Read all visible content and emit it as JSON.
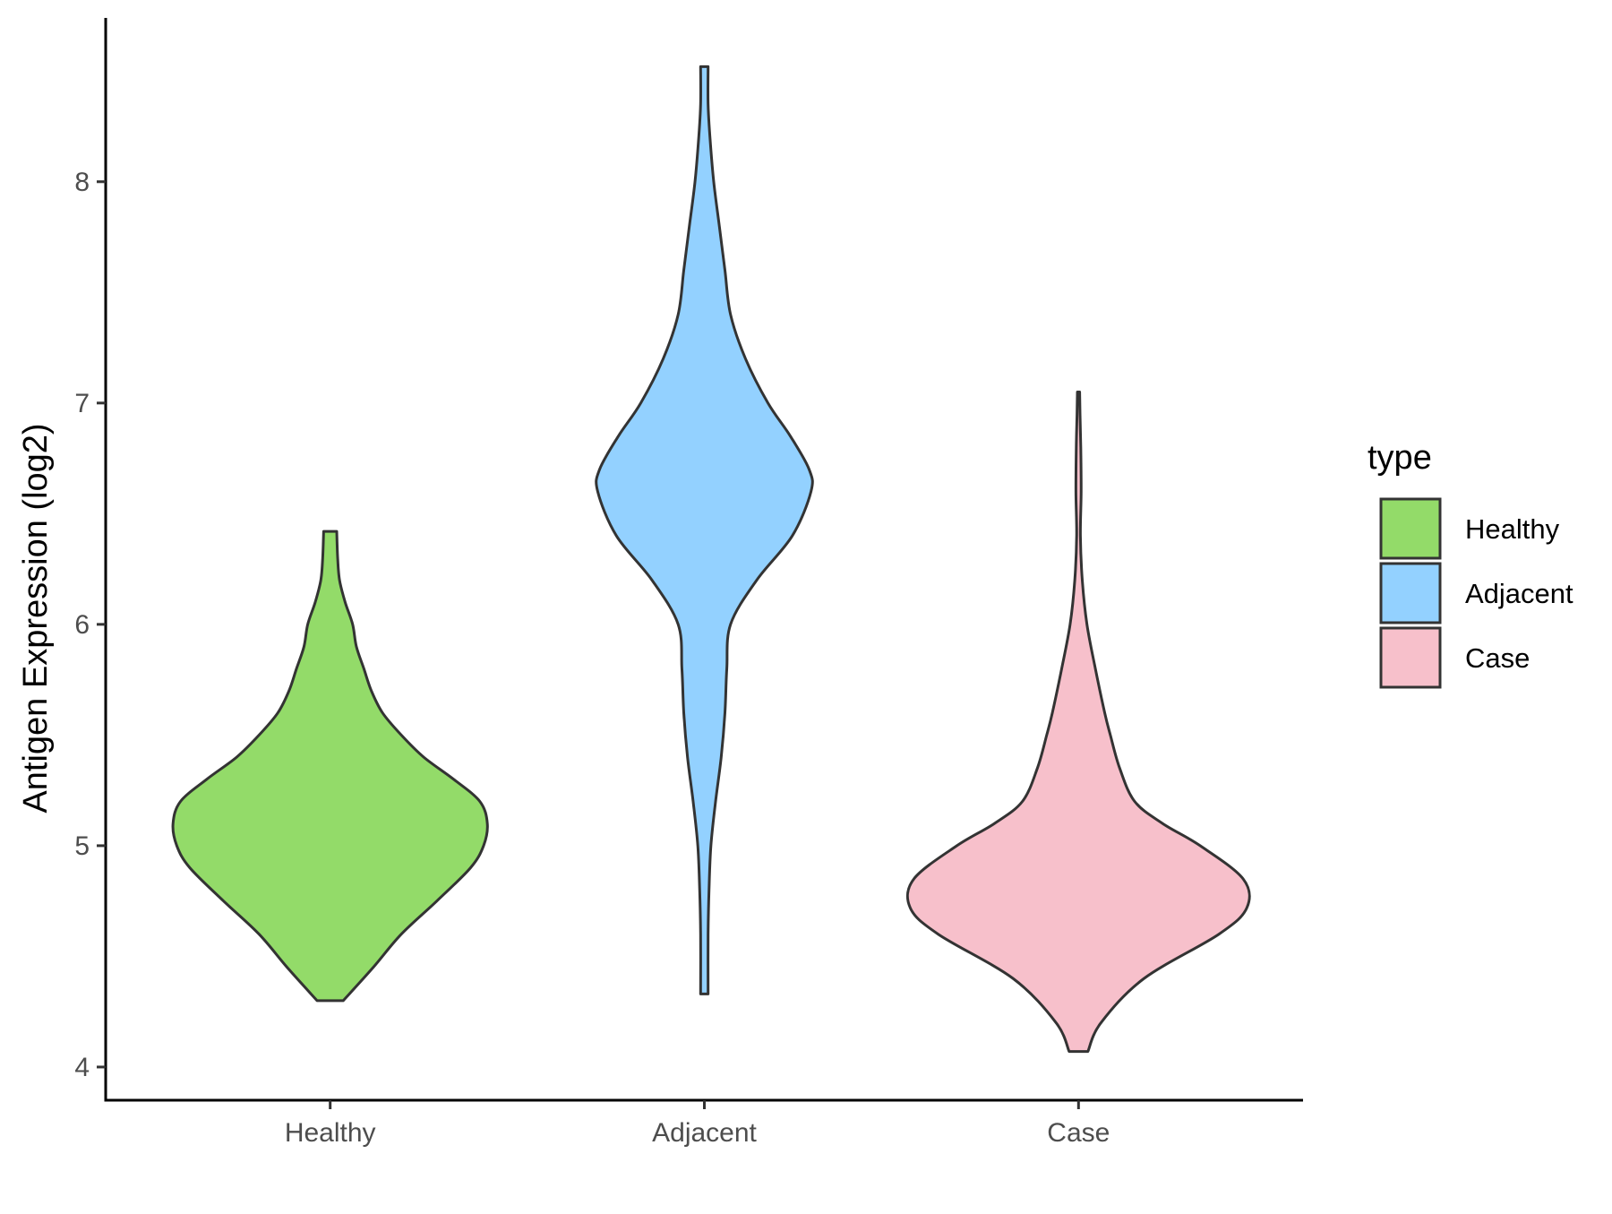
{
  "chart_data": {
    "type": "violin",
    "xlabel": "",
    "ylabel": "Antigen Expression (log2)",
    "categories": [
      "Healthy",
      "Adjacent",
      "Case"
    ],
    "ylim": [
      3.85,
      8.74
    ],
    "yticks": [
      4,
      5,
      6,
      7,
      8
    ],
    "grid": false,
    "legend": {
      "title": "type",
      "position": "right",
      "entries": [
        {
          "label": "Healthy",
          "color": "#93DB69"
        },
        {
          "label": "Adjacent",
          "color": "#93D1FF"
        },
        {
          "label": "Case",
          "color": "#F7C0CB"
        }
      ]
    },
    "series": [
      {
        "category": "Healthy",
        "color": "#93DB69",
        "min": 4.3,
        "max": 6.42,
        "max_width": 0.84,
        "density": [
          [
            4.3,
            0.07
          ],
          [
            4.45,
            0.23
          ],
          [
            4.6,
            0.38
          ],
          [
            4.75,
            0.57
          ],
          [
            4.9,
            0.75
          ],
          [
            5.0,
            0.82
          ],
          [
            5.1,
            0.84
          ],
          [
            5.2,
            0.8
          ],
          [
            5.3,
            0.66
          ],
          [
            5.4,
            0.5
          ],
          [
            5.5,
            0.38
          ],
          [
            5.6,
            0.28
          ],
          [
            5.7,
            0.22
          ],
          [
            5.8,
            0.18
          ],
          [
            5.9,
            0.14
          ],
          [
            6.0,
            0.12
          ],
          [
            6.1,
            0.08
          ],
          [
            6.2,
            0.05
          ],
          [
            6.3,
            0.04
          ],
          [
            6.42,
            0.035
          ]
        ]
      },
      {
        "category": "Adjacent",
        "color": "#93D1FF",
        "min": 4.33,
        "max": 8.52,
        "max_width": 0.58,
        "density": [
          [
            4.33,
            0.02
          ],
          [
            4.6,
            0.02
          ],
          [
            4.8,
            0.025
          ],
          [
            5.0,
            0.035
          ],
          [
            5.2,
            0.06
          ],
          [
            5.4,
            0.09
          ],
          [
            5.6,
            0.11
          ],
          [
            5.8,
            0.12
          ],
          [
            6.0,
            0.14
          ],
          [
            6.2,
            0.28
          ],
          [
            6.4,
            0.47
          ],
          [
            6.6,
            0.57
          ],
          [
            6.7,
            0.56
          ],
          [
            6.85,
            0.46
          ],
          [
            7.0,
            0.34
          ],
          [
            7.2,
            0.22
          ],
          [
            7.4,
            0.14
          ],
          [
            7.6,
            0.11
          ],
          [
            7.8,
            0.08
          ],
          [
            8.0,
            0.05
          ],
          [
            8.2,
            0.03
          ],
          [
            8.35,
            0.02
          ],
          [
            8.52,
            0.02
          ]
        ]
      },
      {
        "category": "Case",
        "color": "#F7C0CB",
        "min": 4.07,
        "max": 7.05,
        "max_width": 0.9,
        "density": [
          [
            4.07,
            0.05
          ],
          [
            4.2,
            0.12
          ],
          [
            4.4,
            0.35
          ],
          [
            4.6,
            0.75
          ],
          [
            4.72,
            0.9
          ],
          [
            4.85,
            0.88
          ],
          [
            5.0,
            0.65
          ],
          [
            5.1,
            0.45
          ],
          [
            5.2,
            0.3
          ],
          [
            5.35,
            0.22
          ],
          [
            5.5,
            0.17
          ],
          [
            5.6,
            0.14
          ],
          [
            5.8,
            0.09
          ],
          [
            6.0,
            0.045
          ],
          [
            6.2,
            0.02
          ],
          [
            6.4,
            0.01
          ],
          [
            6.6,
            0.014
          ],
          [
            6.8,
            0.012
          ],
          [
            6.95,
            0.008
          ],
          [
            7.05,
            0.006
          ]
        ]
      }
    ]
  }
}
